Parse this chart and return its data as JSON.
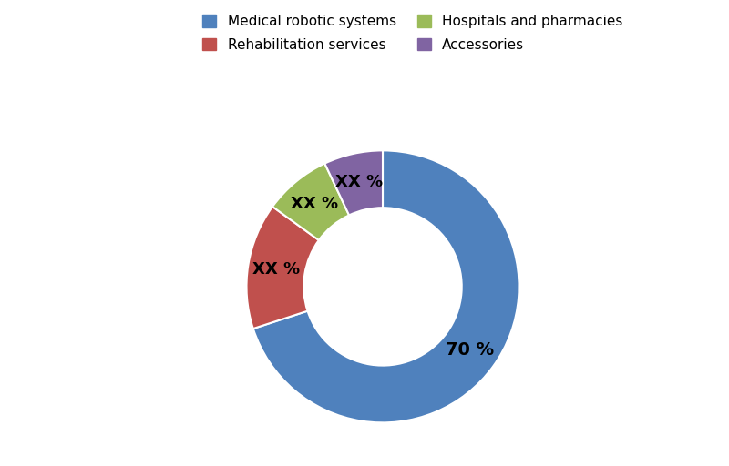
{
  "labels": [
    "Medical robotic systems",
    "Rehabilitation services",
    "Hospitals and pharmacies",
    "Accessories"
  ],
  "values": [
    70,
    15,
    8,
    7
  ],
  "colors": [
    "#4F81BD",
    "#C0504D",
    "#9BBB59",
    "#8064A2"
  ],
  "label_texts": [
    "70 %",
    "XX %",
    "XX %",
    "XX %"
  ],
  "background_color": "#ffffff",
  "wedge_edge_color": "#ffffff",
  "donut_width": 0.42,
  "font_size_labels": 13,
  "font_size_legend": 11,
  "legend_cols": 2,
  "label_positions": [
    {
      "r": 0.78,
      "ha": "center"
    },
    {
      "r": 0.72,
      "ha": "center"
    },
    {
      "r": 0.72,
      "ha": "center"
    },
    {
      "r": 0.72,
      "ha": "center"
    }
  ]
}
